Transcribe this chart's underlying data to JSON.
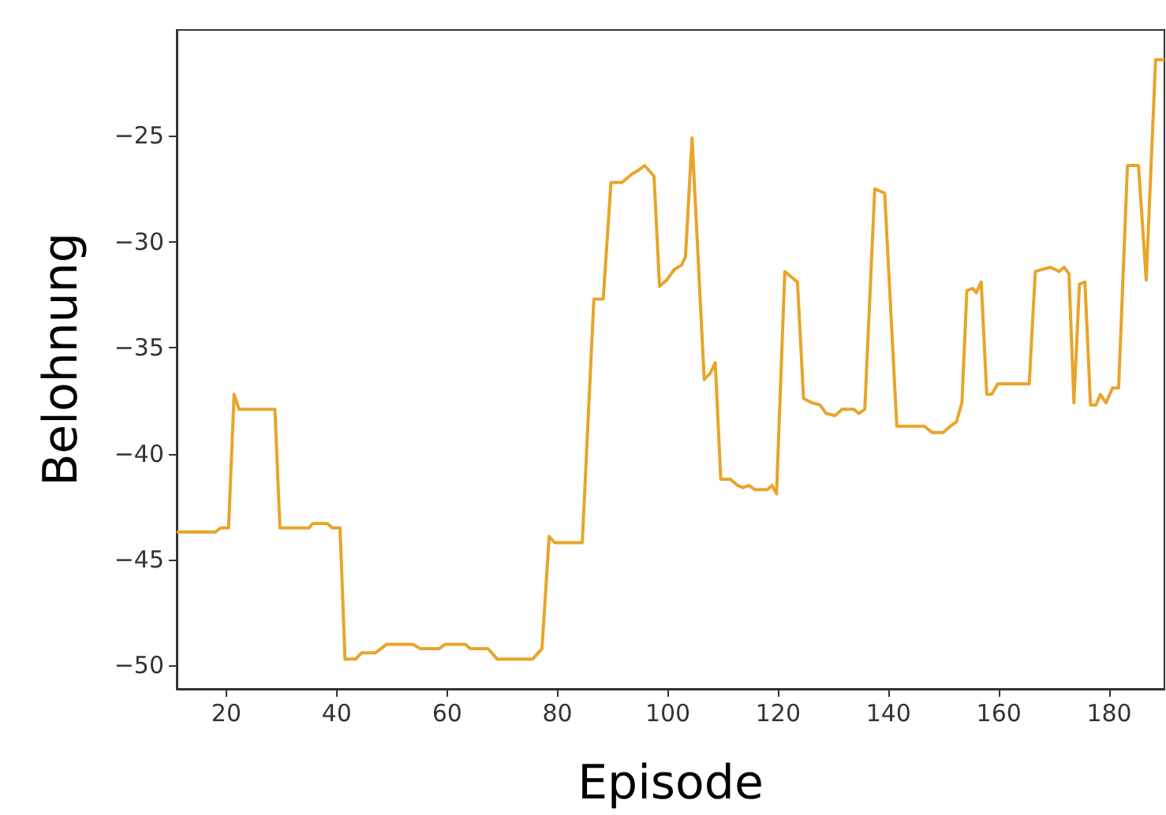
{
  "chart_data": {
    "type": "line",
    "xlabel": "Episode",
    "ylabel": "Belohnung",
    "xlim": [
      11,
      190
    ],
    "ylim": [
      -51.1,
      -20
    ],
    "xticks": [
      20,
      40,
      60,
      80,
      100,
      120,
      140,
      160,
      180
    ],
    "yticks": [
      {
        "value": -25,
        "label": "−25"
      },
      {
        "value": -30,
        "label": "−30"
      },
      {
        "value": -35,
        "label": "−35"
      },
      {
        "value": -40,
        "label": "−40"
      },
      {
        "value": -45,
        "label": "−45"
      },
      {
        "value": -50,
        "label": "−50"
      }
    ],
    "grid": false,
    "marker": "none",
    "line_style": "solid",
    "series": [
      {
        "color": "#e8a52a",
        "x": [
          11,
          18,
          19,
          20.4,
          21.4,
          22.3,
          28.8,
          29.7,
          35,
          35.6,
          38.3,
          39.2,
          40.6,
          41.5,
          43.4,
          44.5,
          47,
          49,
          53.8,
          55.2,
          58.6,
          59.6,
          63.3,
          64.2,
          67.4,
          69.1,
          75.5,
          77.2,
          78.5,
          79.5,
          84.5,
          86.6,
          88.3,
          89.7,
          91.7,
          93.5,
          94.8,
          95.8,
          97.5,
          98.5,
          99.8,
          101.2,
          102.5,
          103.2,
          104.4,
          106.6,
          107.7,
          108.6,
          109.6,
          111.3,
          112.7,
          113.6,
          114.7,
          115.8,
          118,
          118.9,
          119.7,
          121.2,
          123.5,
          124.6,
          126.2,
          127.6,
          128.7,
          130.3,
          131.6,
          133.7,
          134.6,
          135.7,
          137.5,
          139.3,
          141.5,
          146.5,
          147.9,
          149.9,
          151.2,
          152.3,
          153.3,
          154.2,
          155.3,
          155.9,
          156.8,
          157.8,
          158.7,
          159.8,
          165.5,
          166.6,
          167.9,
          169.3,
          170.2,
          170.9,
          171.8,
          172.7,
          173.6,
          174.6,
          175.6,
          176.6,
          177.6,
          178.4,
          179.4,
          180.6,
          181.7,
          183.3,
          185.3,
          186.7,
          188.4,
          190
        ],
        "values": [
          -43.7,
          -43.7,
          -43.5,
          -43.5,
          -37.2,
          -37.9,
          -37.9,
          -43.5,
          -43.5,
          -43.3,
          -43.3,
          -43.5,
          -43.5,
          -49.7,
          -49.7,
          -49.4,
          -49.4,
          -49,
          -49,
          -49.2,
          -49.2,
          -49,
          -49,
          -49.2,
          -49.2,
          -49.7,
          -49.7,
          -49.2,
          -43.9,
          -44.2,
          -44.2,
          -32.7,
          -32.7,
          -27.2,
          -27.2,
          -26.8,
          -26.6,
          -26.4,
          -26.9,
          -32.1,
          -31.8,
          -31.3,
          -31.1,
          -30.7,
          -25.1,
          -36.5,
          -36.2,
          -35.7,
          -41.2,
          -41.2,
          -41.5,
          -41.6,
          -41.5,
          -41.7,
          -41.7,
          -41.5,
          -41.9,
          -31.4,
          -31.9,
          -37.4,
          -37.6,
          -37.7,
          -38.1,
          -38.2,
          -37.9,
          -37.9,
          -38.1,
          -37.9,
          -27.5,
          -27.7,
          -38.7,
          -38.7,
          -39,
          -39,
          -38.7,
          -38.5,
          -37.6,
          -32.3,
          -32.2,
          -32.4,
          -31.9,
          -37.2,
          -37.2,
          -36.7,
          -36.7,
          -31.4,
          -31.3,
          -31.2,
          -31.3,
          -31.4,
          -31.2,
          -31.5,
          -37.6,
          -32,
          -31.9,
          -37.7,
          -37.7,
          -37.2,
          -37.6,
          -36.9,
          -36.9,
          -26.4,
          -26.4,
          -31.8,
          -21.4,
          -21.4
        ]
      }
    ]
  }
}
